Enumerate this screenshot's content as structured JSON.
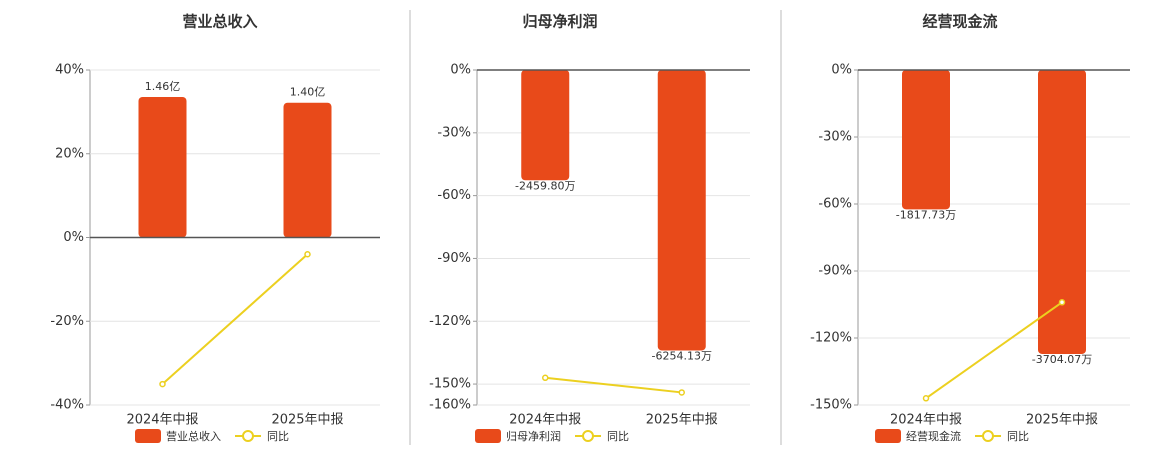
{
  "chart_data": [
    {
      "type": "bar",
      "title": "营业总收入",
      "categories": [
        "2024年中报",
        "2025年中报"
      ],
      "ylim": [
        -40,
        40
      ],
      "yticks": [
        {
          "value": 40,
          "label": "40%"
        },
        {
          "value": 20,
          "label": "20%"
        },
        {
          "value": 0,
          "label": "0%"
        },
        {
          "value": -20,
          "label": "-20%"
        },
        {
          "value": -40,
          "label": "-40%"
        }
      ],
      "y2lim": [
        -1.74,
        1.74
      ],
      "grid": true,
      "series": [
        {
          "name": "营业总收入",
          "color": "#e84a1a",
          "axis": "y2",
          "values": [
            1.46,
            1.4
          ],
          "value_labels": [
            "1.46亿",
            "1.40亿"
          ]
        },
        {
          "name": "同比",
          "type": "line",
          "color": "#ecd020",
          "values": [
            -35,
            -4
          ]
        }
      ]
    },
    {
      "type": "bar",
      "title": "归母净利润",
      "categories": [
        "2024年中报",
        "2025年中报"
      ],
      "ylim": [
        -160,
        0
      ],
      "yticks": [
        {
          "value": 0,
          "label": "0%"
        },
        {
          "value": -30,
          "label": "-30%"
        },
        {
          "value": -60,
          "label": "-60%"
        },
        {
          "value": -90,
          "label": "-90%"
        },
        {
          "value": -120,
          "label": "-120%"
        },
        {
          "value": -150,
          "label": "-150%"
        },
        {
          "value": -160,
          "label": "-160%"
        }
      ],
      "y2lim": [
        -7470,
        0
      ],
      "grid": true,
      "series": [
        {
          "name": "归母净利润",
          "color": "#e84a1a",
          "axis": "y2",
          "values": [
            -2459.8,
            -6254.13
          ],
          "value_labels": [
            "-2459.80万",
            "-6254.13万"
          ]
        },
        {
          "name": "同比",
          "type": "line",
          "color": "#ecd020",
          "values": [
            -147,
            -154
          ]
        }
      ]
    },
    {
      "type": "bar",
      "title": "经营现金流",
      "categories": [
        "2024年中报",
        "2025年中报"
      ],
      "ylim": [
        -150,
        0
      ],
      "yticks": [
        {
          "value": 0,
          "label": "0%"
        },
        {
          "value": -30,
          "label": "-30%"
        },
        {
          "value": -60,
          "label": "-60%"
        },
        {
          "value": -90,
          "label": "-90%"
        },
        {
          "value": -120,
          "label": "-120%"
        },
        {
          "value": -150,
          "label": "-150%"
        }
      ],
      "y2lim": [
        -4370,
        0
      ],
      "grid": true,
      "series": [
        {
          "name": "经营现金流",
          "color": "#e84a1a",
          "axis": "y2",
          "values": [
            -1817.73,
            -3704.07
          ],
          "value_labels": [
            "-1817.73万",
            "-3704.07万"
          ]
        },
        {
          "name": "同比",
          "type": "line",
          "color": "#ecd020",
          "values": [
            -147,
            -104
          ]
        }
      ]
    }
  ]
}
